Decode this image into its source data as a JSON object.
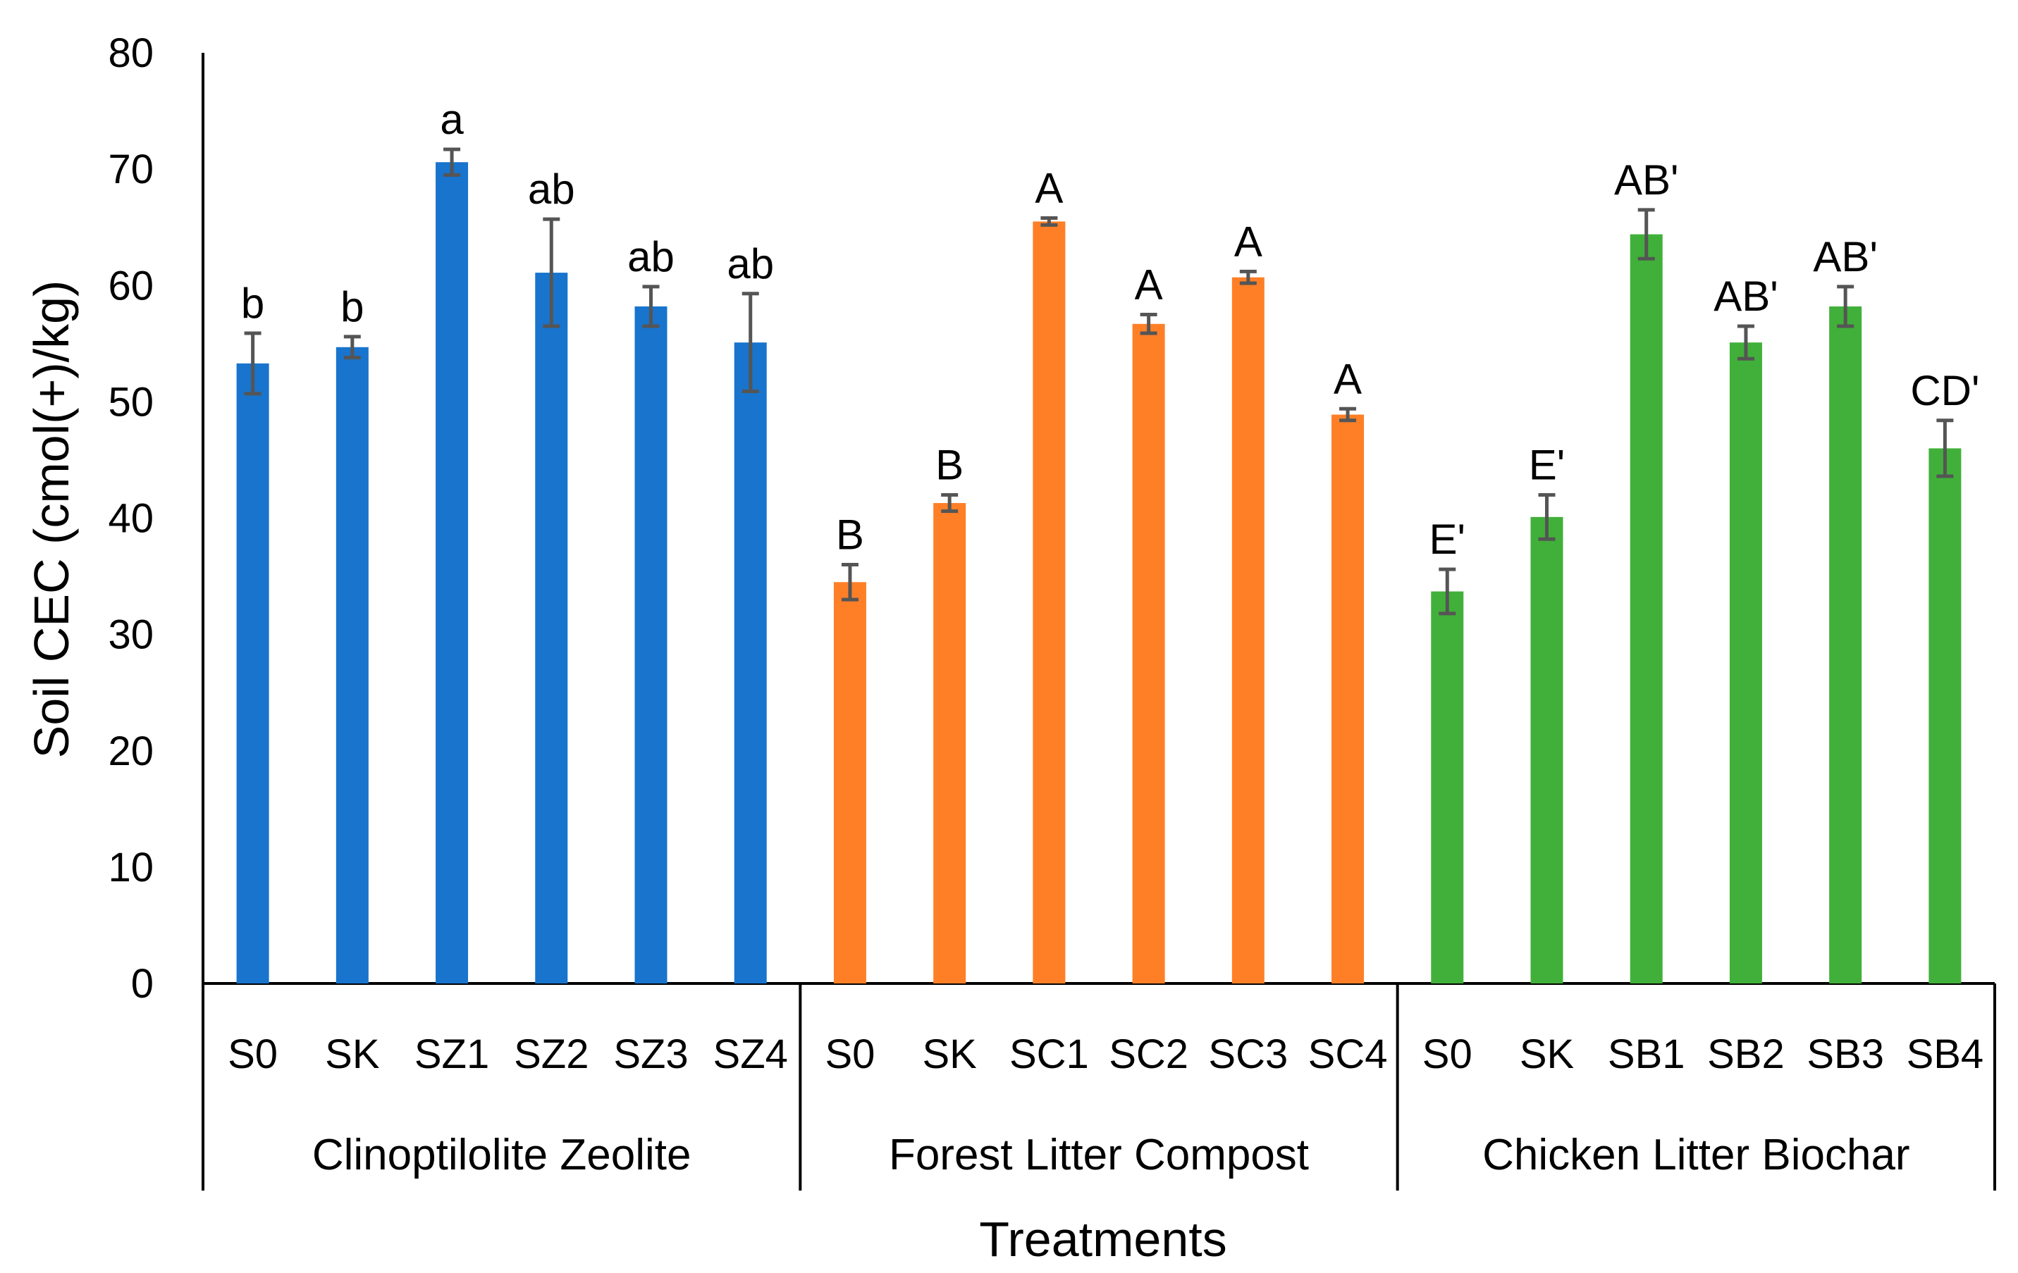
{
  "chart_data": {
    "type": "bar",
    "title": "",
    "xlabel": "Treatments",
    "ylabel": "Soil CEC (cmol(+)/kg)",
    "ylim": [
      0,
      80
    ],
    "yticks": [
      "0",
      "10",
      "20",
      "30",
      "40",
      "50",
      "60",
      "70",
      "80"
    ],
    "grid": false,
    "legend": "none",
    "groups": [
      {
        "name": "Clinoptilolite Zeolite",
        "color": "#1874CD",
        "categories": [
          "S0",
          "SK",
          "SZ1",
          "SZ2",
          "SZ3",
          "SZ4"
        ],
        "values": [
          53.3,
          54.7,
          70.6,
          61.1,
          58.2,
          55.1
        ],
        "errors": [
          2.6,
          0.9,
          1.1,
          4.6,
          1.7,
          4.2
        ],
        "labels": [
          "b",
          "b",
          "a",
          "ab",
          "ab",
          "ab"
        ]
      },
      {
        "name": "Forest Litter Compost",
        "color": "#FF7F27",
        "categories": [
          "S0",
          "SK",
          "SC1",
          "SC2",
          "SC3",
          "SC4"
        ],
        "values": [
          34.5,
          41.3,
          65.5,
          56.7,
          60.7,
          48.9
        ],
        "errors": [
          1.5,
          0.7,
          0.3,
          0.8,
          0.5,
          0.5
        ],
        "labels": [
          "B",
          "B",
          "A",
          "A",
          "A",
          "A"
        ]
      },
      {
        "name": "Chicken Litter Biochar",
        "color": "#41B03A",
        "categories": [
          "S0",
          "SK",
          "SB1",
          "SB2",
          "SB3",
          "SB4"
        ],
        "values": [
          33.7,
          40.1,
          64.4,
          55.1,
          58.2,
          46.0
        ],
        "errors": [
          1.9,
          1.9,
          2.1,
          1.4,
          1.7,
          2.4
        ],
        "labels": [
          "E'",
          "E'",
          "AB'",
          "AB'",
          "AB'",
          "CD'"
        ]
      }
    ]
  }
}
